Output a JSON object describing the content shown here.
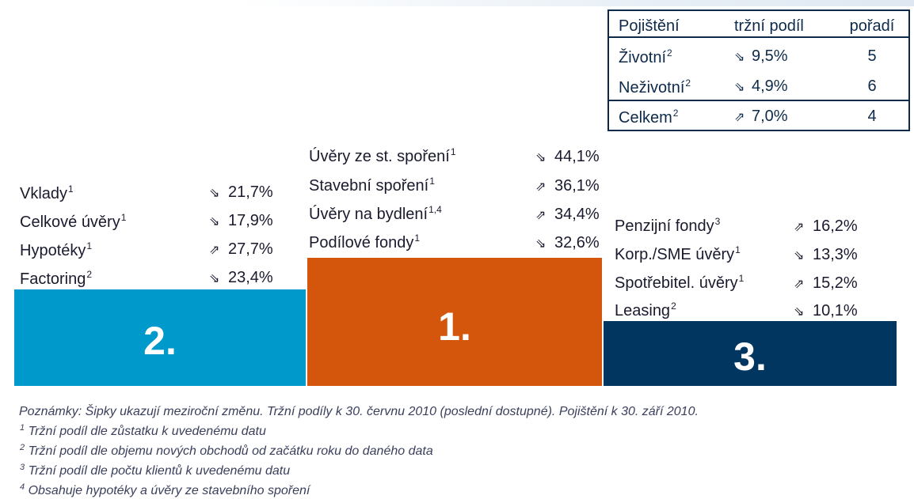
{
  "insurance_table": {
    "headers": [
      "Pojištění",
      "tržní podíl",
      "pořadí"
    ],
    "rows": [
      {
        "name": "Životní",
        "sup": "2",
        "trend": "down",
        "share": "9,5%",
        "rank": "5"
      },
      {
        "name": "Neživotní",
        "sup": "2",
        "trend": "down",
        "share": "4,9%",
        "rank": "6"
      },
      {
        "name": "Celkem",
        "sup": "2",
        "trend": "up",
        "share": "7,0%",
        "rank": "4"
      }
    ]
  },
  "chart_data": {
    "type": "bar",
    "categories": [
      "2.",
      "1.",
      "3."
    ],
    "values": [
      2,
      1,
      3
    ],
    "colors": [
      "#0099cc",
      "#d4560c",
      "#003660"
    ],
    "groups": [
      {
        "rank_label": "2.",
        "items": [
          {
            "label": "Vklady",
            "sup": "1",
            "trend": "down",
            "value": "21,7%"
          },
          {
            "label": "Celkové úvěry",
            "sup": "1",
            "trend": "down",
            "value": "17,9%"
          },
          {
            "label": "Hypotéky",
            "sup": "1",
            "trend": "up",
            "value": "27,7%"
          },
          {
            "label": "Factoring",
            "sup": "2",
            "trend": "down",
            "value": "23,4%"
          }
        ]
      },
      {
        "rank_label": "1.",
        "items": [
          {
            "label": "Úvěry ze st. spoření",
            "sup": "1",
            "trend": "down",
            "value": "44,1%"
          },
          {
            "label": "Stavební spoření",
            "sup": "1",
            "trend": "up",
            "value": "36,1%"
          },
          {
            "label": "Úvěry na bydlení",
            "sup": "1,4",
            "trend": "up",
            "value": "34,4%"
          },
          {
            "label": "Podílové fondy",
            "sup": "1",
            "trend": "down",
            "value": "32,6%"
          }
        ]
      },
      {
        "rank_label": "3.",
        "items": [
          {
            "label": "Penzijní fondy",
            "sup": "3",
            "trend": "up",
            "value": "16,2%"
          },
          {
            "label": "Korp./SME úvěry",
            "sup": "1",
            "trend": "down",
            "value": "13,3%"
          },
          {
            "label": "Spotřebitel. úvěry",
            "sup": "1",
            "trend": "up",
            "value": "15,2%"
          },
          {
            "label": "Leasing",
            "sup": "2",
            "trend": "down",
            "value": "10,1%"
          }
        ]
      }
    ]
  },
  "notes": {
    "main": "Poznámky: Šipky ukazují meziroční změnu. Tržní podíly k 30. červnu 2010 (poslední dostupné). Pojištění k 30. září 2010.",
    "footnotes": [
      {
        "sup": "1",
        "text": "Tržní podíl dle zůstatku k uvedenému datu"
      },
      {
        "sup": "2",
        "text": "Tržní podíl dle objemu nových obchodů od začátku roku do daného data"
      },
      {
        "sup": "3",
        "text": "Tržní podíl dle počtu klientů k uvedenému datu"
      },
      {
        "sup": "4",
        "text": "Obsahuje hypotéky a úvěry ze stavebního spoření"
      }
    ]
  }
}
